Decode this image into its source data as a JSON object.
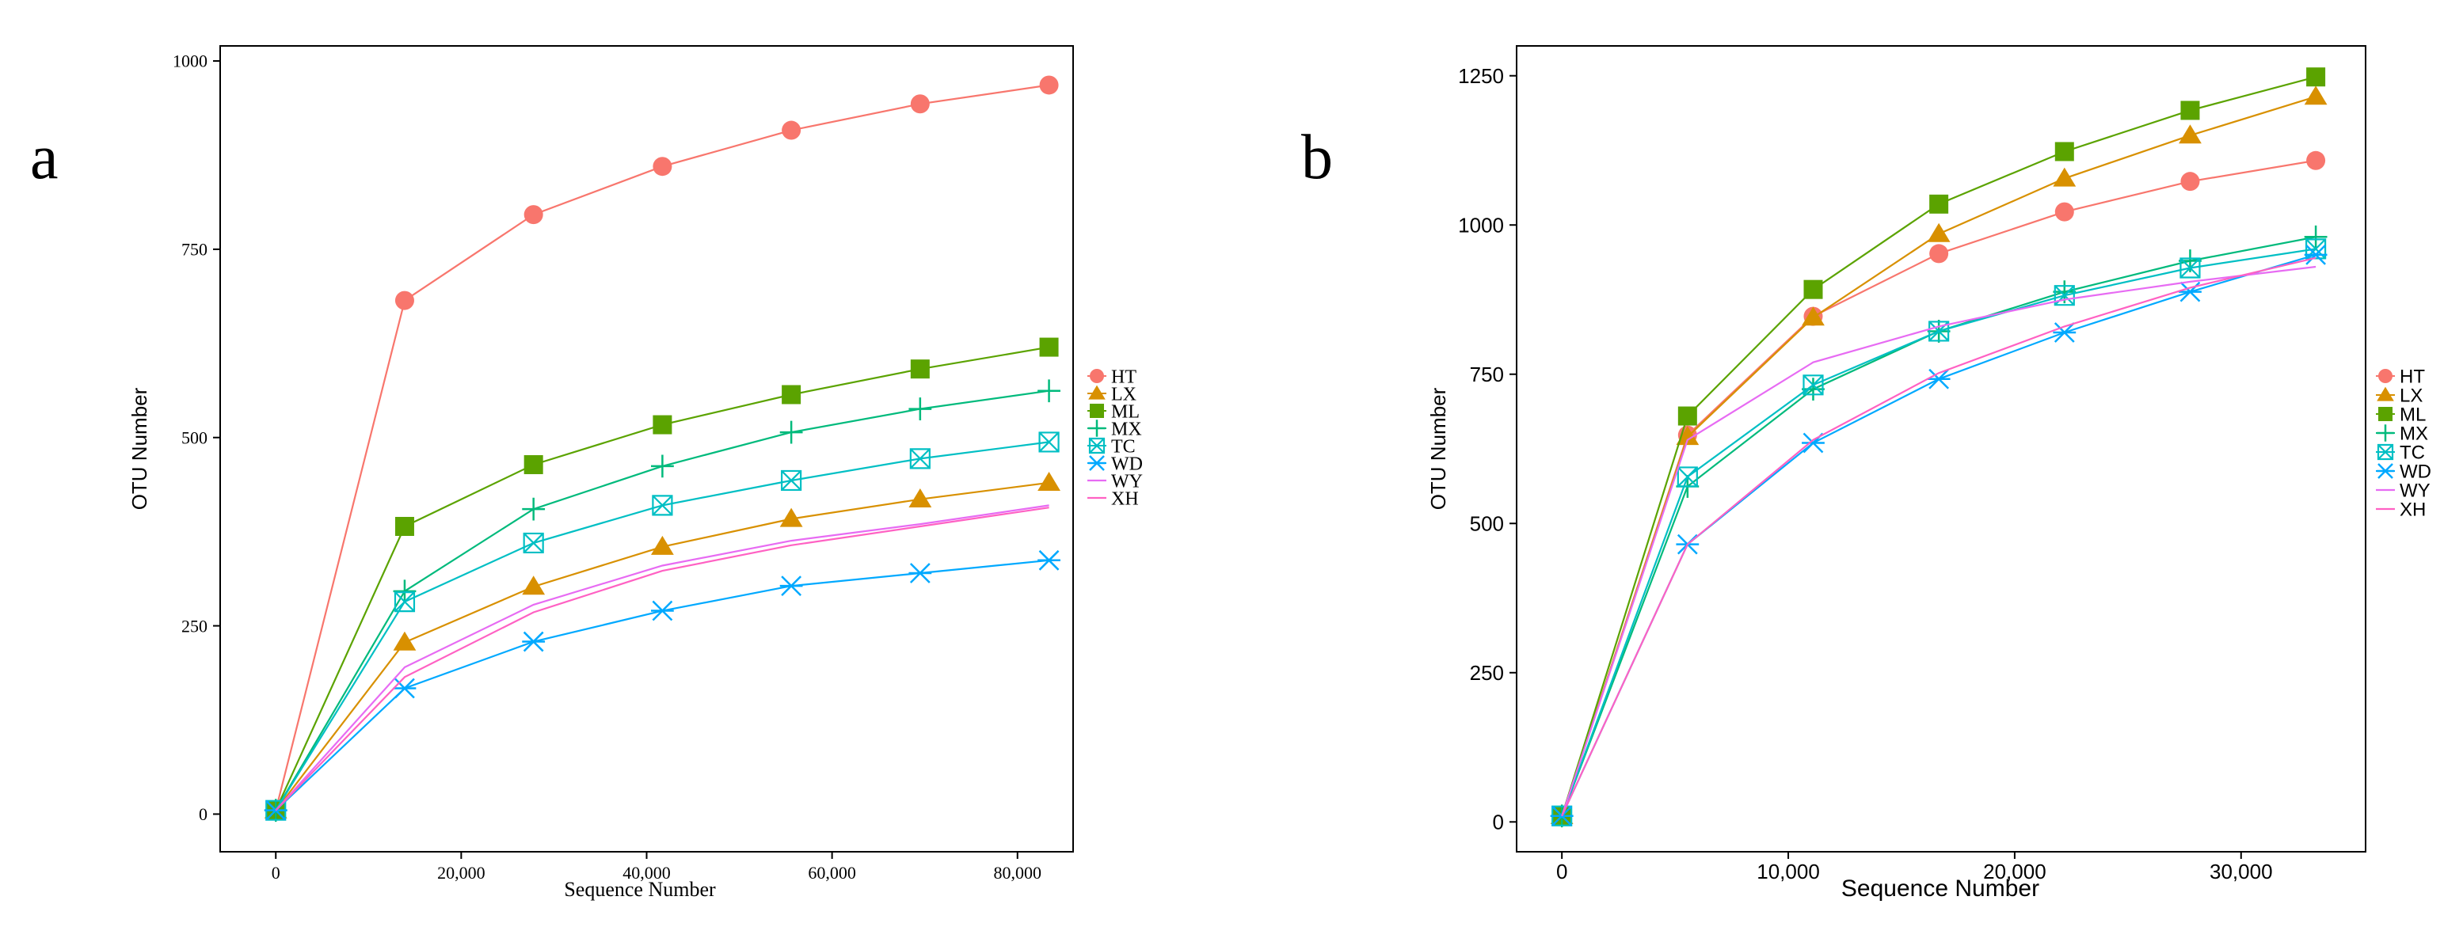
{
  "chart_data": [
    {
      "panel": "a",
      "type": "line",
      "title": "",
      "xlabel": "Sequence Number",
      "ylabel": "OTU Number",
      "xlim": [
        -6000,
        86000
      ],
      "ylim": [
        -50,
        1020
      ],
      "x_ticks": [
        0,
        20000,
        40000,
        60000,
        80000
      ],
      "x_tick_labels": [
        "0",
        "20,000",
        "40,000",
        "60,000",
        "80,000"
      ],
      "y_ticks": [
        0,
        250,
        500,
        750,
        1000
      ],
      "y_tick_labels": [
        "0",
        "250",
        "500",
        "750",
        "1000"
      ],
      "grid": false,
      "legend_position": "right",
      "x": [
        0,
        13900,
        27800,
        41700,
        55600,
        69500,
        83400
      ],
      "series": [
        {
          "name": "HT",
          "color": "#F8766D",
          "marker": "circle",
          "values": [
            5,
            682,
            796,
            860,
            908,
            943,
            968
          ]
        },
        {
          "name": "LX",
          "color": "#D89000",
          "marker": "triangle",
          "values": [
            5,
            228,
            302,
            355,
            392,
            418,
            440
          ]
        },
        {
          "name": "ML",
          "color": "#5BA300",
          "marker": "square",
          "values": [
            5,
            382,
            464,
            517,
            557,
            591,
            620
          ]
        },
        {
          "name": "MX",
          "color": "#00BA7C",
          "marker": "plus",
          "values": [
            5,
            296,
            405,
            462,
            507,
            538,
            562
          ]
        },
        {
          "name": "TC",
          "color": "#00BFC4",
          "marker": "square-cross",
          "values": [
            5,
            282,
            360,
            410,
            443,
            472,
            494
          ]
        },
        {
          "name": "WD",
          "color": "#00A9FF",
          "marker": "asterisk",
          "values": [
            5,
            167,
            229,
            270,
            303,
            320,
            337
          ]
        },
        {
          "name": "WY",
          "color": "#E76BF3",
          "marker": "none",
          "values": [
            5,
            195,
            278,
            330,
            363,
            385,
            410
          ]
        },
        {
          "name": "XH",
          "color": "#FF61C3",
          "marker": "none",
          "values": [
            5,
            182,
            268,
            323,
            357,
            382,
            407
          ]
        }
      ]
    },
    {
      "panel": "b",
      "type": "line",
      "title": "",
      "xlabel": "Sequence Number",
      "ylabel": "OTU Number",
      "xlim": [
        -2000,
        35500
      ],
      "ylim": [
        -50,
        1300
      ],
      "x_ticks": [
        0,
        10000,
        20000,
        30000
      ],
      "x_tick_labels": [
        "0",
        "10,000",
        "20,000",
        "30,000"
      ],
      "y_ticks": [
        0,
        250,
        500,
        750,
        1000,
        1250
      ],
      "y_tick_labels": [
        "0",
        "250",
        "500",
        "750",
        "1000",
        "1250"
      ],
      "grid": false,
      "legend_position": "right",
      "x": [
        0,
        5550,
        11100,
        16650,
        22200,
        27750,
        33300
      ],
      "series": [
        {
          "name": "HT",
          "color": "#F8766D",
          "marker": "circle",
          "values": [
            10,
            648,
            847,
            952,
            1022,
            1073,
            1108
          ]
        },
        {
          "name": "LX",
          "color": "#D89000",
          "marker": "triangle",
          "values": [
            10,
            645,
            845,
            985,
            1078,
            1150,
            1215
          ]
        },
        {
          "name": "ML",
          "color": "#5BA300",
          "marker": "square",
          "values": [
            10,
            680,
            892,
            1035,
            1123,
            1192,
            1248
          ]
        },
        {
          "name": "MX",
          "color": "#00BA7C",
          "marker": "plus",
          "values": [
            10,
            562,
            725,
            822,
            888,
            940,
            980
          ]
        },
        {
          "name": "TC",
          "color": "#00BFC4",
          "marker": "square-cross",
          "values": [
            10,
            578,
            732,
            822,
            882,
            928,
            960
          ]
        },
        {
          "name": "WD",
          "color": "#00A9FF",
          "marker": "asterisk",
          "values": [
            10,
            465,
            635,
            742,
            820,
            888,
            950
          ]
        },
        {
          "name": "WY",
          "color": "#E76BF3",
          "marker": "none",
          "values": [
            10,
            640,
            770,
            830,
            875,
            905,
            930
          ]
        },
        {
          "name": "XH",
          "color": "#FF61C3",
          "marker": "none",
          "values": [
            10,
            465,
            640,
            752,
            830,
            895,
            945
          ]
        }
      ]
    }
  ]
}
